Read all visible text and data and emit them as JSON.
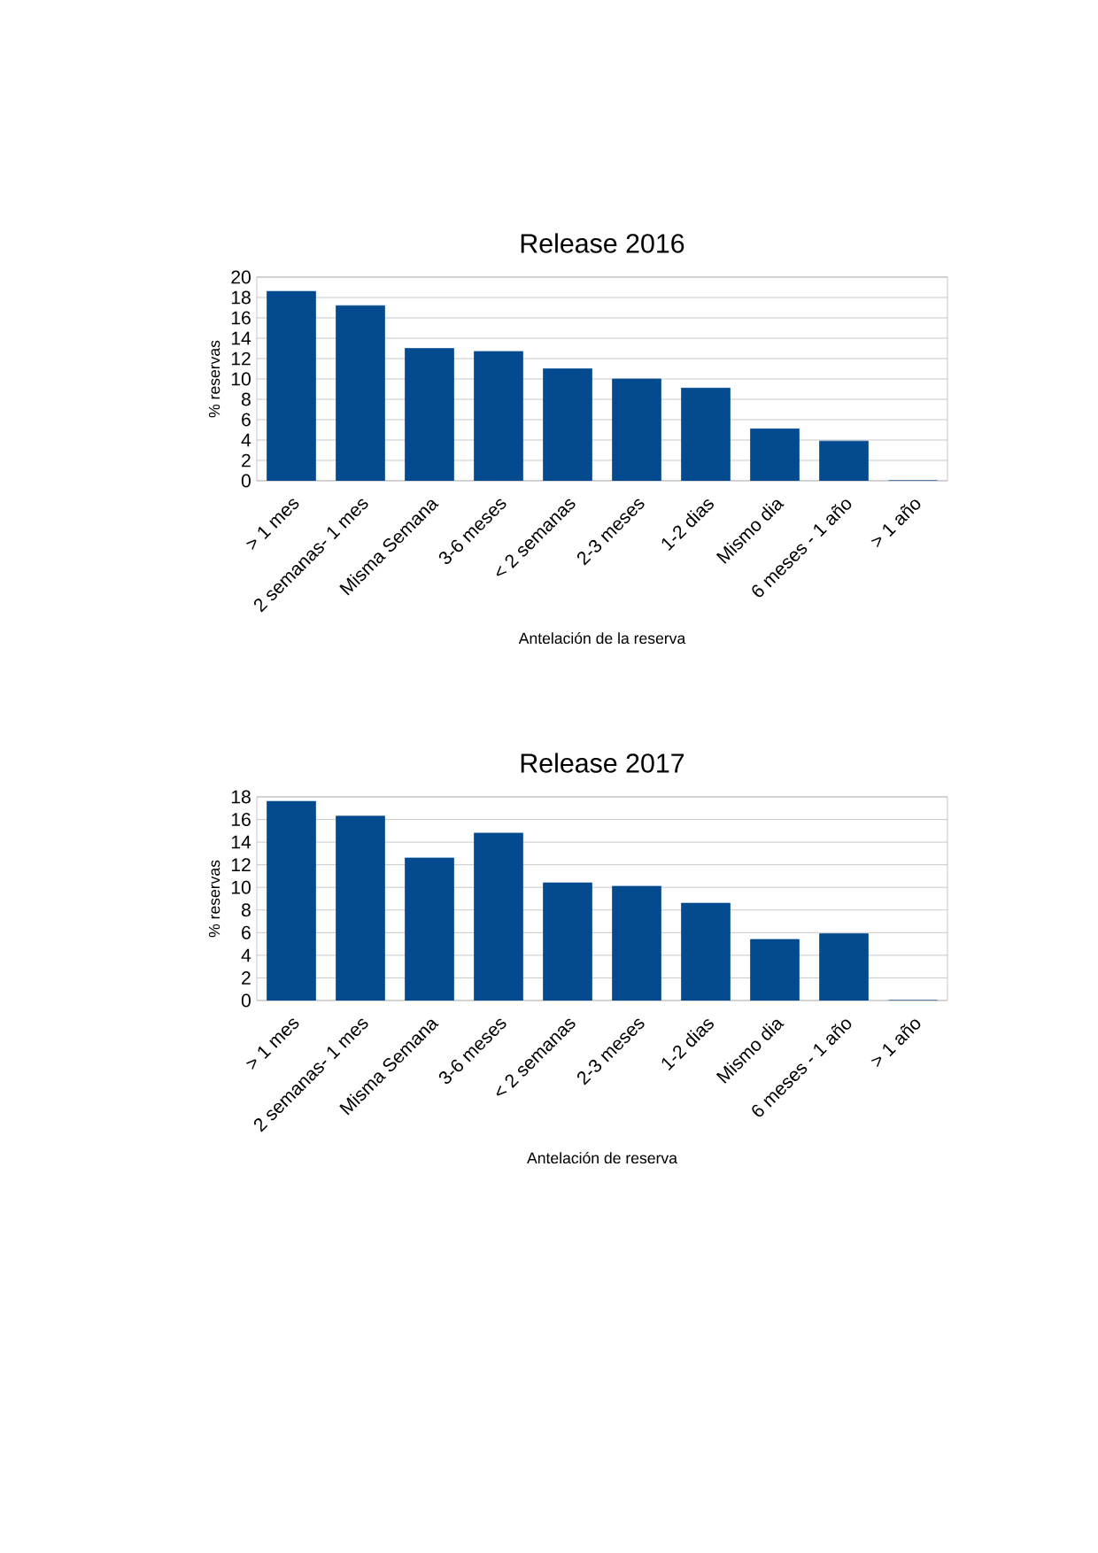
{
  "chart_data": [
    {
      "type": "bar",
      "title": "Release 2016",
      "xlabel": "Antelación de la reserva",
      "ylabel": "% reservas",
      "categories": [
        "> 1 mes",
        "2 semanas- 1 mes",
        "Misma Semana",
        "3-6 meses",
        "< 2 semanas",
        "2-3 meses",
        "1-2 dias",
        "Mismo dia",
        "6 meses - 1 año",
        "> 1 año"
      ],
      "values": [
        18.6,
        17.2,
        13,
        12.7,
        11,
        10,
        9.1,
        5.1,
        3.9,
        0
      ],
      "color": "#044a8f",
      "ylim": [
        0,
        20
      ],
      "yticks": [
        0,
        2,
        4,
        6,
        8,
        10,
        12,
        14,
        16,
        18,
        20
      ],
      "grid": "y"
    },
    {
      "type": "bar",
      "title": "Release 2017",
      "xlabel": "Antelación de reserva",
      "ylabel": "% reservas",
      "categories": [
        "> 1 mes",
        "2 semanas- 1 mes",
        "Misma Semana",
        "3-6 meses",
        "< 2 semanas",
        "2-3 meses",
        "1-2 dias",
        "Mismo dia",
        "6 meses - 1 año",
        "> 1 año"
      ],
      "values": [
        17.6,
        16.3,
        12.6,
        14.8,
        10.4,
        10.1,
        8.6,
        5.4,
        5.9,
        0
      ],
      "color": "#044a8f",
      "ylim": [
        0,
        18
      ],
      "yticks": [
        0,
        2,
        4,
        6,
        8,
        10,
        12,
        14,
        16,
        18
      ],
      "grid": "y"
    }
  ]
}
